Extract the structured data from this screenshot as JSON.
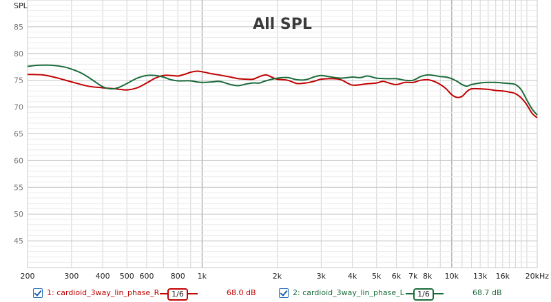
{
  "chart_data": {
    "type": "line",
    "title": "All SPL",
    "ylabel": "SPL",
    "xlabel": "",
    "x_scale": "log",
    "xlim": [
      200,
      22000
    ],
    "ylim": [
      40,
      90
    ],
    "grid": true,
    "x_tick_labels": [
      {
        "value": 200,
        "label": "200"
      },
      {
        "value": 300,
        "label": "300"
      },
      {
        "value": 400,
        "label": "400"
      },
      {
        "value": 500,
        "label": "500"
      },
      {
        "value": 600,
        "label": "600"
      },
      {
        "value": 800,
        "label": "800"
      },
      {
        "value": 1000,
        "label": "1k"
      },
      {
        "value": 2000,
        "label": "2k"
      },
      {
        "value": 3000,
        "label": "3k"
      },
      {
        "value": 4000,
        "label": "4k"
      },
      {
        "value": 5000,
        "label": "5k"
      },
      {
        "value": 6000,
        "label": "6k"
      },
      {
        "value": 7000,
        "label": "7k"
      },
      {
        "value": 8000,
        "label": "8k"
      },
      {
        "value": 10000,
        "label": "10k"
      },
      {
        "value": 13000,
        "label": "13k"
      },
      {
        "value": 16000,
        "label": "16k"
      },
      {
        "value": 20000,
        "label": "20kHz"
      }
    ],
    "y_ticks": [
      45,
      50,
      55,
      60,
      65,
      70,
      75,
      80,
      85
    ],
    "series": [
      {
        "name": "1: cardioid_3way_lin_phase_R",
        "color": "#c00000",
        "smoothing": "1/6",
        "level": "68.0 dB",
        "points": [
          [
            200,
            76.1
          ],
          [
            230,
            76.0
          ],
          [
            260,
            75.5
          ],
          [
            300,
            74.7
          ],
          [
            350,
            73.9
          ],
          [
            400,
            73.6
          ],
          [
            450,
            73.4
          ],
          [
            500,
            73.2
          ],
          [
            550,
            73.6
          ],
          [
            600,
            74.5
          ],
          [
            650,
            75.4
          ],
          [
            700,
            75.9
          ],
          [
            750,
            75.9
          ],
          [
            800,
            75.8
          ],
          [
            850,
            76.1
          ],
          [
            900,
            76.5
          ],
          [
            950,
            76.7
          ],
          [
            1000,
            76.6
          ],
          [
            1100,
            76.2
          ],
          [
            1200,
            75.9
          ],
          [
            1300,
            75.6
          ],
          [
            1400,
            75.3
          ],
          [
            1500,
            75.2
          ],
          [
            1600,
            75.2
          ],
          [
            1700,
            75.7
          ],
          [
            1800,
            76.0
          ],
          [
            1900,
            75.6
          ],
          [
            2000,
            75.2
          ],
          [
            2200,
            75.0
          ],
          [
            2400,
            74.4
          ],
          [
            2600,
            74.5
          ],
          [
            2800,
            74.8
          ],
          [
            3000,
            75.2
          ],
          [
            3300,
            75.3
          ],
          [
            3600,
            75.1
          ],
          [
            4000,
            74.1
          ],
          [
            4500,
            74.3
          ],
          [
            5000,
            74.5
          ],
          [
            5300,
            74.8
          ],
          [
            5600,
            74.5
          ],
          [
            6000,
            74.2
          ],
          [
            6500,
            74.6
          ],
          [
            7000,
            74.6
          ],
          [
            7500,
            75.0
          ],
          [
            8000,
            75.1
          ],
          [
            8500,
            74.8
          ],
          [
            9000,
            74.2
          ],
          [
            9500,
            73.4
          ],
          [
            10000,
            72.3
          ],
          [
            10500,
            71.8
          ],
          [
            11000,
            72.0
          ],
          [
            11500,
            72.9
          ],
          [
            12000,
            73.4
          ],
          [
            13000,
            73.4
          ],
          [
            14000,
            73.3
          ],
          [
            15000,
            73.1
          ],
          [
            16000,
            73.0
          ],
          [
            17000,
            72.8
          ],
          [
            18000,
            72.5
          ],
          [
            19000,
            71.7
          ],
          [
            20000,
            70.4
          ],
          [
            21000,
            68.8
          ],
          [
            22000,
            68.0
          ]
        ]
      },
      {
        "name": "2: cardioid_3way_lin_phase_L",
        "color": "#1a6b3a",
        "smoothing": "1/6",
        "level": "68.7 dB",
        "points": [
          [
            200,
            77.6
          ],
          [
            220,
            77.8
          ],
          [
            250,
            77.8
          ],
          [
            280,
            77.5
          ],
          [
            300,
            77.1
          ],
          [
            330,
            76.3
          ],
          [
            360,
            75.2
          ],
          [
            400,
            73.8
          ],
          [
            430,
            73.4
          ],
          [
            460,
            73.6
          ],
          [
            500,
            74.4
          ],
          [
            550,
            75.4
          ],
          [
            600,
            75.9
          ],
          [
            650,
            75.9
          ],
          [
            700,
            75.6
          ],
          [
            750,
            75.1
          ],
          [
            800,
            74.9
          ],
          [
            850,
            74.9
          ],
          [
            900,
            74.9
          ],
          [
            950,
            74.7
          ],
          [
            1000,
            74.6
          ],
          [
            1100,
            74.7
          ],
          [
            1150,
            74.8
          ],
          [
            1200,
            74.7
          ],
          [
            1300,
            74.2
          ],
          [
            1400,
            74.0
          ],
          [
            1500,
            74.3
          ],
          [
            1600,
            74.5
          ],
          [
            1700,
            74.5
          ],
          [
            1800,
            74.9
          ],
          [
            2000,
            75.4
          ],
          [
            2200,
            75.5
          ],
          [
            2400,
            75.1
          ],
          [
            2600,
            75.1
          ],
          [
            2800,
            75.6
          ],
          [
            3000,
            75.9
          ],
          [
            3300,
            75.6
          ],
          [
            3600,
            75.4
          ],
          [
            4000,
            75.6
          ],
          [
            4300,
            75.5
          ],
          [
            4600,
            75.8
          ],
          [
            5000,
            75.4
          ],
          [
            5500,
            75.3
          ],
          [
            6000,
            75.3
          ],
          [
            6500,
            75.0
          ],
          [
            7000,
            75.0
          ],
          [
            7500,
            75.7
          ],
          [
            8000,
            76.0
          ],
          [
            8500,
            75.9
          ],
          [
            9000,
            75.7
          ],
          [
            9500,
            75.6
          ],
          [
            10000,
            75.3
          ],
          [
            10500,
            74.8
          ],
          [
            11000,
            74.2
          ],
          [
            11500,
            73.9
          ],
          [
            12000,
            74.2
          ],
          [
            13000,
            74.5
          ],
          [
            14000,
            74.6
          ],
          [
            15000,
            74.6
          ],
          [
            16000,
            74.5
          ],
          [
            17000,
            74.4
          ],
          [
            18000,
            74.2
          ],
          [
            19000,
            73.2
          ],
          [
            20000,
            71.3
          ],
          [
            21000,
            69.6
          ],
          [
            22000,
            68.5
          ]
        ]
      }
    ]
  }
}
